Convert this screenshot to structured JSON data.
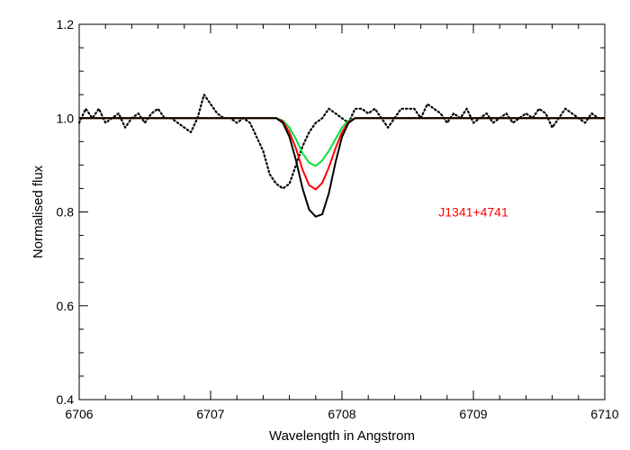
{
  "chart_data": {
    "type": "line",
    "xlabel": "Wavelength in Angstrom",
    "ylabel": "Normalised flux",
    "xlim": [
      6706,
      6710
    ],
    "ylim": [
      0.4,
      1.2
    ],
    "xticks": [
      "6706",
      "6707",
      "6708",
      "6709",
      "6710"
    ],
    "yticks": [
      "0.4",
      "0.6",
      "0.8",
      "1.0",
      "1.2"
    ],
    "grid": false,
    "annotation": {
      "text": "J1341+4741",
      "color": "#ff0000",
      "x": 6709.0,
      "y": 0.8
    },
    "series": [
      {
        "style": "dotted",
        "color": "#000000",
        "x": [
          6706.0,
          6706.05,
          6706.1,
          6706.15,
          6706.2,
          6706.25,
          6706.3,
          6706.35,
          6706.4,
          6706.45,
          6706.5,
          6706.55,
          6706.6,
          6706.65,
          6706.7,
          6706.75,
          6706.8,
          6706.85,
          6706.9,
          6706.95,
          6707.0,
          6707.05,
          6707.1,
          6707.15,
          6707.2,
          6707.25,
          6707.3,
          6707.35,
          6707.4,
          6707.45,
          6707.5,
          6707.55,
          6707.6,
          6707.65,
          6707.7,
          6707.75,
          6707.8,
          6707.85,
          6707.9,
          6707.95,
          6708.0,
          6708.05,
          6708.1,
          6708.15,
          6708.2,
          6708.25,
          6708.3,
          6708.35,
          6708.4,
          6708.45,
          6708.5,
          6708.55,
          6708.6,
          6708.65,
          6708.7,
          6708.75,
          6708.8,
          6708.85,
          6708.9,
          6708.95,
          6709.0,
          6709.05,
          6709.1,
          6709.15,
          6709.2,
          6709.25,
          6709.3,
          6709.35,
          6709.4,
          6709.45,
          6709.5,
          6709.55,
          6709.6,
          6709.65,
          6709.7,
          6709.75,
          6709.8,
          6709.85,
          6709.9,
          6709.95,
          6710.0
        ],
        "y": [
          0.99,
          1.02,
          1.0,
          1.02,
          0.99,
          1.0,
          1.01,
          0.98,
          1.0,
          1.01,
          0.99,
          1.01,
          1.02,
          1.0,
          1.0,
          0.99,
          0.98,
          0.97,
          1.0,
          1.05,
          1.03,
          1.01,
          1.0,
          1.0,
          0.99,
          1.0,
          0.99,
          0.96,
          0.93,
          0.88,
          0.86,
          0.85,
          0.86,
          0.9,
          0.94,
          0.97,
          0.99,
          1.0,
          1.02,
          1.01,
          1.0,
          0.99,
          1.02,
          1.02,
          1.01,
          1.02,
          1.0,
          0.98,
          1.0,
          1.02,
          1.02,
          1.02,
          1.0,
          1.03,
          1.02,
          1.01,
          0.99,
          1.01,
          1.0,
          1.02,
          0.99,
          1.0,
          1.01,
          0.99,
          1.0,
          1.01,
          0.99,
          1.0,
          1.01,
          1.0,
          1.02,
          1.01,
          0.98,
          1.0,
          1.02,
          1.01,
          1.0,
          0.99,
          1.01,
          1.0,
          1.0
        ]
      },
      {
        "color": "#00e040",
        "x": [
          6706.0,
          6707.5,
          6707.55,
          6707.6,
          6707.65,
          6707.7,
          6707.75,
          6707.8,
          6707.85,
          6707.9,
          6707.95,
          6708.0,
          6708.05,
          6708.1,
          6710.0
        ],
        "y": [
          1.0,
          1.0,
          0.995,
          0.98,
          0.955,
          0.925,
          0.905,
          0.898,
          0.91,
          0.93,
          0.955,
          0.98,
          0.995,
          1.0,
          1.0
        ]
      },
      {
        "color": "#ff0000",
        "x": [
          6706.0,
          6707.5,
          6707.55,
          6707.6,
          6707.65,
          6707.7,
          6707.75,
          6707.8,
          6707.85,
          6707.9,
          6707.95,
          6708.0,
          6708.05,
          6708.1,
          6710.0
        ],
        "y": [
          1.0,
          1.0,
          0.993,
          0.97,
          0.935,
          0.89,
          0.857,
          0.848,
          0.862,
          0.895,
          0.935,
          0.97,
          0.992,
          1.0,
          1.0
        ]
      },
      {
        "color": "#000000",
        "x": [
          6706.0,
          6707.5,
          6707.55,
          6707.6,
          6707.65,
          6707.7,
          6707.75,
          6707.8,
          6707.85,
          6707.9,
          6707.95,
          6708.0,
          6708.05,
          6708.1,
          6710.0
        ],
        "y": [
          1.0,
          1.0,
          0.99,
          0.96,
          0.91,
          0.85,
          0.805,
          0.79,
          0.795,
          0.84,
          0.905,
          0.96,
          0.99,
          1.0,
          1.0
        ]
      }
    ]
  }
}
